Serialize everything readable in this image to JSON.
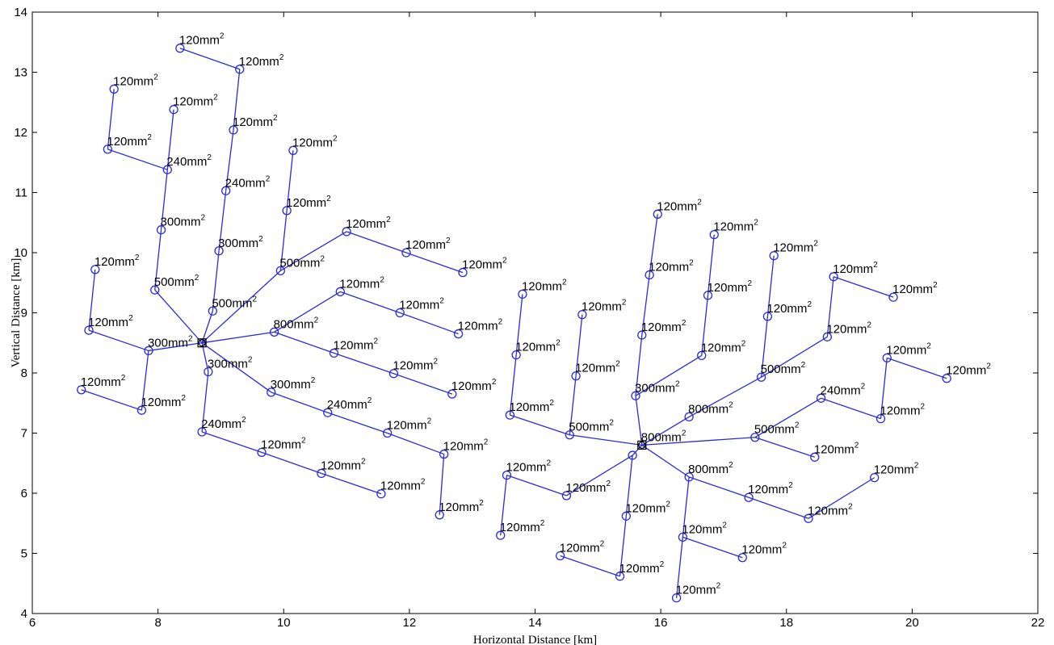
{
  "chart_data": {
    "type": "scatter",
    "title": "",
    "xlabel": "Horizontal Distance [km]",
    "ylabel": "Vertical Distance [km]",
    "xlim": [
      6,
      22
    ],
    "ylim": [
      4,
      14
    ],
    "xticks": [
      "6",
      "8",
      "10",
      "12",
      "14",
      "16",
      "18",
      "20",
      "22"
    ],
    "yticks": [
      "4",
      "5",
      "6",
      "7",
      "8",
      "9",
      "10",
      "11",
      "12",
      "13",
      "14"
    ],
    "grid": false,
    "legend": "none",
    "line_color": "#2b2bd6",
    "substations": [
      {
        "x": 8.7,
        "y": 8.5
      },
      {
        "x": 15.7,
        "y": 6.8
      }
    ],
    "nodes": [
      {
        "id": "A1",
        "x": 7.85,
        "y": 8.37,
        "label": "300mm",
        "sup": "2"
      },
      {
        "id": "A2",
        "x": 6.9,
        "y": 8.71,
        "label": "120mm",
        "sup": "2"
      },
      {
        "id": "A3",
        "x": 7.0,
        "y": 9.72,
        "label": "120mm",
        "sup": "2"
      },
      {
        "id": "A4",
        "x": 7.74,
        "y": 7.38,
        "label": "120mm",
        "sup": "2"
      },
      {
        "id": "A5",
        "x": 6.78,
        "y": 7.72,
        "label": "120mm",
        "sup": "2"
      },
      {
        "id": "A6",
        "x": 7.95,
        "y": 9.38,
        "label": "500mm",
        "sup": "2"
      },
      {
        "id": "A7",
        "x": 8.05,
        "y": 10.38,
        "label": "300mm",
        "sup": "2"
      },
      {
        "id": "A8",
        "x": 8.15,
        "y": 11.38,
        "label": "240mm",
        "sup": "2"
      },
      {
        "id": "A9",
        "x": 8.25,
        "y": 12.38,
        "label": "120mm",
        "sup": "2"
      },
      {
        "id": "A10",
        "x": 7.2,
        "y": 11.72,
        "label": "120mm",
        "sup": "2"
      },
      {
        "id": "A11",
        "x": 7.3,
        "y": 12.72,
        "label": "120mm",
        "sup": "2"
      },
      {
        "id": "A12",
        "x": 8.87,
        "y": 9.03,
        "label": "500mm",
        "sup": "2"
      },
      {
        "id": "A13",
        "x": 8.97,
        "y": 10.03,
        "label": "300mm",
        "sup": "2"
      },
      {
        "id": "A14",
        "x": 9.08,
        "y": 11.03,
        "label": "240mm",
        "sup": "2"
      },
      {
        "id": "A15",
        "x": 9.2,
        "y": 12.04,
        "label": "120mm",
        "sup": "2"
      },
      {
        "id": "A16",
        "x": 9.3,
        "y": 13.05,
        "label": "120mm",
        "sup": "2"
      },
      {
        "id": "A17",
        "x": 8.35,
        "y": 13.4,
        "label": "120mm",
        "sup": "2"
      },
      {
        "id": "A18",
        "x": 9.95,
        "y": 9.7,
        "label": "500mm",
        "sup": "2"
      },
      {
        "id": "A19",
        "x": 10.05,
        "y": 10.7,
        "label": "120mm",
        "sup": "2"
      },
      {
        "id": "A20",
        "x": 10.15,
        "y": 11.7,
        "label": "120mm",
        "sup": "2"
      },
      {
        "id": "A21",
        "x": 11.0,
        "y": 10.35,
        "label": "120mm",
        "sup": "2"
      },
      {
        "id": "A22",
        "x": 11.95,
        "y": 10.0,
        "label": "120mm",
        "sup": "2"
      },
      {
        "id": "A23",
        "x": 12.85,
        "y": 9.67,
        "label": "120mm",
        "sup": "2"
      },
      {
        "id": "A24",
        "x": 9.85,
        "y": 8.68,
        "label": "800mm",
        "sup": "2"
      },
      {
        "id": "A25",
        "x": 10.9,
        "y": 9.35,
        "label": "120mm",
        "sup": "2"
      },
      {
        "id": "A26",
        "x": 11.85,
        "y": 9.0,
        "label": "120mm",
        "sup": "2"
      },
      {
        "id": "A27",
        "x": 12.78,
        "y": 8.65,
        "label": "120mm",
        "sup": "2"
      },
      {
        "id": "A28",
        "x": 10.8,
        "y": 8.33,
        "label": "120mm",
        "sup": "2"
      },
      {
        "id": "A29",
        "x": 11.75,
        "y": 7.99,
        "label": "120mm",
        "sup": "2"
      },
      {
        "id": "A30",
        "x": 12.68,
        "y": 7.65,
        "label": "120mm",
        "sup": "2"
      },
      {
        "id": "A31",
        "x": 8.8,
        "y": 8.02,
        "label": "300mm",
        "sup": "2"
      },
      {
        "id": "A32",
        "x": 8.7,
        "y": 7.02,
        "label": "240mm",
        "sup": "2"
      },
      {
        "id": "A33",
        "x": 9.65,
        "y": 6.68,
        "label": "120mm",
        "sup": "2"
      },
      {
        "id": "A34",
        "x": 10.6,
        "y": 6.33,
        "label": "120mm",
        "sup": "2"
      },
      {
        "id": "A35",
        "x": 11.55,
        "y": 5.99,
        "label": "120mm",
        "sup": "2"
      },
      {
        "id": "A36",
        "x": 9.8,
        "y": 7.68,
        "label": "300mm",
        "sup": "2"
      },
      {
        "id": "A37",
        "x": 10.7,
        "y": 7.34,
        "label": "240mm",
        "sup": "2"
      },
      {
        "id": "A38",
        "x": 11.65,
        "y": 7.0,
        "label": "120mm",
        "sup": "2"
      },
      {
        "id": "A39",
        "x": 12.55,
        "y": 6.65,
        "label": "120mm",
        "sup": "2"
      },
      {
        "id": "A40",
        "x": 12.48,
        "y": 5.64,
        "label": "120mm",
        "sup": "2"
      },
      {
        "id": "B1",
        "x": 14.55,
        "y": 6.97,
        "label": "500mm",
        "sup": "2"
      },
      {
        "id": "B2",
        "x": 13.6,
        "y": 7.3,
        "label": "120mm",
        "sup": "2"
      },
      {
        "id": "B3",
        "x": 13.7,
        "y": 8.3,
        "label": "120mm",
        "sup": "2"
      },
      {
        "id": "B4",
        "x": 13.8,
        "y": 9.31,
        "label": "120mm",
        "sup": "2"
      },
      {
        "id": "B5",
        "x": 14.65,
        "y": 7.95,
        "label": "120mm",
        "sup": "2"
      },
      {
        "id": "B6",
        "x": 14.75,
        "y": 8.97,
        "label": "120mm",
        "sup": "2"
      },
      {
        "id": "B7",
        "x": 15.6,
        "y": 7.62,
        "label": "300mm",
        "sup": "2"
      },
      {
        "id": "B8",
        "x": 15.7,
        "y": 8.63,
        "label": "120mm",
        "sup": "2"
      },
      {
        "id": "B9",
        "x": 15.82,
        "y": 9.63,
        "label": "120mm",
        "sup": "2"
      },
      {
        "id": "B10",
        "x": 15.95,
        "y": 10.64,
        "label": "120mm",
        "sup": "2"
      },
      {
        "id": "B11",
        "x": 16.65,
        "y": 8.29,
        "label": "120mm",
        "sup": "2"
      },
      {
        "id": "B12",
        "x": 16.75,
        "y": 9.29,
        "label": "120mm",
        "sup": "2"
      },
      {
        "id": "B13",
        "x": 16.85,
        "y": 10.3,
        "label": "120mm",
        "sup": "2"
      },
      {
        "id": "B14",
        "x": 16.45,
        "y": 7.27,
        "label": "800mm",
        "sup": "2"
      },
      {
        "id": "B15",
        "x": 17.6,
        "y": 7.93,
        "label": "500mm",
        "sup": "2"
      },
      {
        "id": "B16",
        "x": 17.7,
        "y": 8.94,
        "label": "120mm",
        "sup": "2"
      },
      {
        "id": "B17",
        "x": 17.8,
        "y": 9.95,
        "label": "120mm",
        "sup": "2"
      },
      {
        "id": "B18",
        "x": 18.65,
        "y": 8.6,
        "label": "120mm",
        "sup": "2"
      },
      {
        "id": "B19",
        "x": 18.75,
        "y": 9.6,
        "label": "120mm",
        "sup": "2"
      },
      {
        "id": "B20",
        "x": 19.7,
        "y": 9.26,
        "label": "120mm",
        "sup": "2"
      },
      {
        "id": "B21",
        "x": 17.5,
        "y": 6.93,
        "label": "500mm",
        "sup": "2"
      },
      {
        "id": "B22",
        "x": 18.45,
        "y": 6.6,
        "label": "120mm",
        "sup": "2"
      },
      {
        "id": "B23",
        "x": 18.55,
        "y": 7.58,
        "label": "240mm",
        "sup": "2"
      },
      {
        "id": "B24",
        "x": 19.5,
        "y": 7.24,
        "label": "120mm",
        "sup": "2"
      },
      {
        "id": "B25",
        "x": 19.6,
        "y": 8.25,
        "label": "120mm",
        "sup": "2"
      },
      {
        "id": "B26",
        "x": 20.55,
        "y": 7.91,
        "label": "120mm",
        "sup": "2"
      },
      {
        "id": "B27",
        "x": 16.45,
        "y": 6.27,
        "label": "800mm",
        "sup": "2"
      },
      {
        "id": "B28",
        "x": 17.4,
        "y": 5.93,
        "label": "120mm",
        "sup": "2"
      },
      {
        "id": "B29",
        "x": 18.35,
        "y": 5.58,
        "label": "120mm",
        "sup": "2"
      },
      {
        "id": "B30",
        "x": 19.4,
        "y": 6.26,
        "label": "120mm",
        "sup": "2"
      },
      {
        "id": "B31",
        "x": 16.35,
        "y": 5.27,
        "label": "120mm",
        "sup": "2"
      },
      {
        "id": "B32",
        "x": 17.3,
        "y": 4.93,
        "label": "120mm",
        "sup": "2"
      },
      {
        "id": "B33",
        "x": 16.25,
        "y": 4.26,
        "label": "120mm",
        "sup": "2"
      },
      {
        "id": "B34",
        "x": 15.55,
        "y": 6.63,
        "label": "",
        "sup": ""
      },
      {
        "id": "B35",
        "x": 15.45,
        "y": 5.62,
        "label": "120mm",
        "sup": "2"
      },
      {
        "id": "B36",
        "x": 15.35,
        "y": 4.62,
        "label": "120mm",
        "sup": "2"
      },
      {
        "id": "B37",
        "x": 14.4,
        "y": 4.96,
        "label": "120mm",
        "sup": "2"
      },
      {
        "id": "B38",
        "x": 14.5,
        "y": 5.96,
        "label": "120mm",
        "sup": "2"
      },
      {
        "id": "B39",
        "x": 13.55,
        "y": 6.3,
        "label": "120mm",
        "sup": "2"
      },
      {
        "id": "B40",
        "x": 13.45,
        "y": 5.3,
        "label": "120mm",
        "sup": "2"
      },
      {
        "id": "S2L",
        "x": 15.7,
        "y": 6.8,
        "label": "800mm",
        "sup": "2"
      }
    ],
    "edges": [
      [
        "SA",
        "A1"
      ],
      [
        "A1",
        "A2"
      ],
      [
        "A2",
        "A3"
      ],
      [
        "A1",
        "A4"
      ],
      [
        "A4",
        "A5"
      ],
      [
        "SA",
        "A6"
      ],
      [
        "A6",
        "A7"
      ],
      [
        "A7",
        "A8"
      ],
      [
        "A8",
        "A9"
      ],
      [
        "A8",
        "A10"
      ],
      [
        "A10",
        "A11"
      ],
      [
        "SA",
        "A12"
      ],
      [
        "A12",
        "A13"
      ],
      [
        "A13",
        "A14"
      ],
      [
        "A14",
        "A15"
      ],
      [
        "A15",
        "A16"
      ],
      [
        "A16",
        "A17"
      ],
      [
        "SA",
        "A18"
      ],
      [
        "A18",
        "A19"
      ],
      [
        "A19",
        "A20"
      ],
      [
        "A18",
        "A21"
      ],
      [
        "A21",
        "A22"
      ],
      [
        "A22",
        "A23"
      ],
      [
        "SA",
        "A24"
      ],
      [
        "A24",
        "A25"
      ],
      [
        "A25",
        "A26"
      ],
      [
        "A26",
        "A27"
      ],
      [
        "A24",
        "A28"
      ],
      [
        "A28",
        "A29"
      ],
      [
        "A29",
        "A30"
      ],
      [
        "SA",
        "A31"
      ],
      [
        "A31",
        "A32"
      ],
      [
        "A32",
        "A33"
      ],
      [
        "A33",
        "A34"
      ],
      [
        "A34",
        "A35"
      ],
      [
        "SA",
        "A36"
      ],
      [
        "A36",
        "A37"
      ],
      [
        "A37",
        "A38"
      ],
      [
        "A38",
        "A39"
      ],
      [
        "A39",
        "A40"
      ],
      [
        "SB",
        "B1"
      ],
      [
        "B1",
        "B2"
      ],
      [
        "B2",
        "B3"
      ],
      [
        "B3",
        "B4"
      ],
      [
        "B1",
        "B5"
      ],
      [
        "B5",
        "B6"
      ],
      [
        "SB",
        "B7"
      ],
      [
        "B7",
        "B8"
      ],
      [
        "B8",
        "B9"
      ],
      [
        "B9",
        "B10"
      ],
      [
        "B7",
        "B11"
      ],
      [
        "B11",
        "B12"
      ],
      [
        "B12",
        "B13"
      ],
      [
        "SB",
        "B14"
      ],
      [
        "B14",
        "B15"
      ],
      [
        "B15",
        "B16"
      ],
      [
        "B16",
        "B17"
      ],
      [
        "B15",
        "B18"
      ],
      [
        "B18",
        "B19"
      ],
      [
        "B19",
        "B20"
      ],
      [
        "SB",
        "B21"
      ],
      [
        "B21",
        "B22"
      ],
      [
        "B21",
        "B23"
      ],
      [
        "B23",
        "B24"
      ],
      [
        "B24",
        "B25"
      ],
      [
        "B25",
        "B26"
      ],
      [
        "SB",
        "B27"
      ],
      [
        "B27",
        "B28"
      ],
      [
        "B28",
        "B29"
      ],
      [
        "B29",
        "B30"
      ],
      [
        "B27",
        "B31"
      ],
      [
        "B31",
        "B32"
      ],
      [
        "B31",
        "B33"
      ],
      [
        "SB",
        "B34"
      ],
      [
        "B34",
        "B35"
      ],
      [
        "B35",
        "B36"
      ],
      [
        "B36",
        "B37"
      ],
      [
        "B34",
        "B38"
      ],
      [
        "B38",
        "B39"
      ],
      [
        "B39",
        "B40"
      ]
    ]
  }
}
